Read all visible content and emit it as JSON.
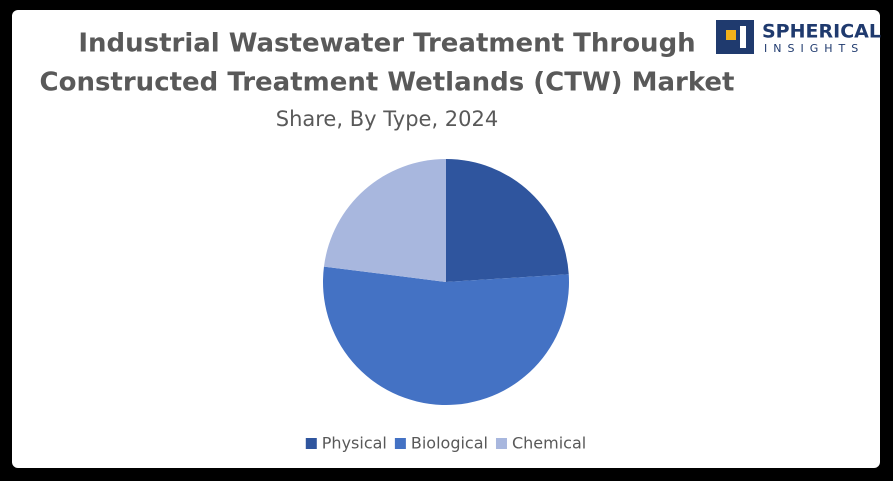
{
  "chart_data": {
    "type": "pie",
    "title": [
      "Industrial Wastewater Treatment Through",
      "Constructed Treatment Wetlands (CTW) Market"
    ],
    "subtitle": "Share, By Type, 2024",
    "categories": [
      "Physical",
      "Biological",
      "Chemical"
    ],
    "values": [
      24,
      53,
      23
    ],
    "colors": [
      "#2f559e",
      "#4472c4",
      "#a8b7de"
    ],
    "legend": "bottom"
  },
  "logo": {
    "name": "SPHERICAL",
    "tagline": "INSIGHTS"
  }
}
